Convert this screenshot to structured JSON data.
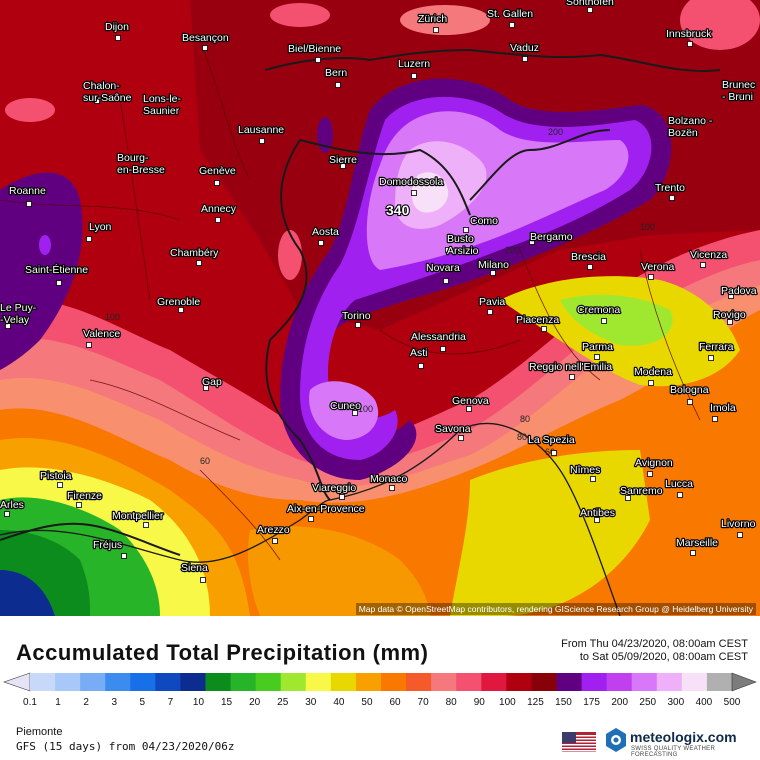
{
  "legend": {
    "title": "Accumulated Total Precipitation (mm)",
    "period_from": "From Thu 04/23/2020, 08:00am CEST",
    "period_to": "to Sat 05/09/2020, 08:00am CEST",
    "ticks": [
      "0.1",
      "1",
      "2",
      "3",
      "5",
      "7",
      "10",
      "15",
      "20",
      "25",
      "30",
      "40",
      "50",
      "60",
      "70",
      "80",
      "90",
      "100",
      "125",
      "150",
      "175",
      "200",
      "250",
      "300",
      "400",
      "500"
    ],
    "colors": [
      "#e4e4f4",
      "#c8d8f8",
      "#a8c8f8",
      "#78acf4",
      "#3c8cf0",
      "#1870e8",
      "#1048c0",
      "#0c2c90",
      "#0c8c1c",
      "#28b428",
      "#48cc20",
      "#a0e830",
      "#f8f848",
      "#e8d800",
      "#f8a000",
      "#f87800",
      "#f45a2a",
      "#f4787c",
      "#f45070",
      "#e01840",
      "#b00010",
      "#880008",
      "#600080",
      "#a020f0",
      "#c040f0",
      "#d878f8",
      "#eeb0f8",
      "#f8e0f8",
      "#b0b0b0",
      "#7c7c7c"
    ]
  },
  "region": "Piemonte",
  "model": "GFS (15 days) from 04/23/2020/06z",
  "brand": {
    "name": "meteologix.com",
    "tagline": "SWISS QUALITY WEATHER FORECASTING"
  },
  "attribution": "Map data © OpenStreetMap contributors, rendering GIScience Research Group @ Heidelberg University",
  "peak_value": "340",
  "contour_labels": [
    "200",
    "200",
    "100",
    "100",
    "100",
    "80",
    "80",
    "80",
    "60",
    "60",
    "40"
  ],
  "cities": [
    "Dijon",
    "Besançon",
    "Zürich",
    "St. Gallen",
    "Sonthofen",
    "Innsbruck",
    "Biel/Bienne",
    "Vaduz",
    "Luzern",
    "Bern",
    "Chalon-sur-Saône",
    "Lons-le-Saunier",
    "Lausanne",
    "Bolzano - Bozen",
    "Brunico - Bruni",
    "Sierre",
    "Genève",
    "Bourg-en-Bresse",
    "Domodossola",
    "Trento",
    "Roanne",
    "Annecy",
    "Lyon",
    "Aosta",
    "Como",
    "Busto Arsizio",
    "Bergamo",
    "Chambéry",
    "Saint-Étienne",
    "Novara",
    "Milano",
    "Brescia",
    "Verona",
    "Vicenza",
    "Grenoble",
    "Padova",
    "Le Puy-en-Velay",
    "Torino",
    "Pavia",
    "Cremona",
    "Piacenza",
    "Rovigo",
    "Valence",
    "Alessandria",
    "Asti",
    "Parma",
    "Ferrara",
    "Reggio nell'Emilia",
    "Modena",
    "Gap",
    "Bologna",
    "Cuneo",
    "Genova",
    "Imola",
    "Savona",
    "La Spezia",
    "Avignon",
    "Pistoia",
    "Nîmes",
    "Viareggio",
    "Monaco",
    "Sanremo",
    "Lucca",
    "Firenze",
    "Arles",
    "Montpellier",
    "Aix-en-Provence",
    "Antibes",
    "Livorno",
    "Arezzo",
    "Fréjus",
    "Marseille",
    "Siena",
    "Toulon"
  ]
}
